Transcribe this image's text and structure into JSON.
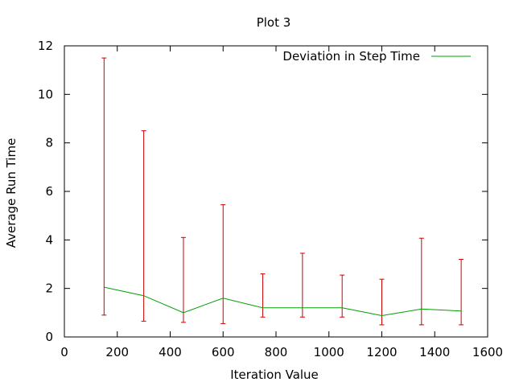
{
  "chart_data": {
    "type": "line",
    "title": "Plot 3",
    "xlabel": "Iteration Value",
    "ylabel": "Average Run Time",
    "xlim": [
      0,
      1600
    ],
    "ylim": [
      0,
      12
    ],
    "xticks": [
      0,
      200,
      400,
      600,
      800,
      1000,
      1200,
      1400,
      1600
    ],
    "yticks": [
      0,
      2,
      4,
      6,
      8,
      10,
      12
    ],
    "grid": false,
    "legend_position": "top-right",
    "series": [
      {
        "name": "Deviation in Step Time",
        "color": "#00a000",
        "x": [
          150,
          300,
          450,
          600,
          750,
          900,
          1050,
          1200,
          1350,
          1500
        ],
        "y": [
          2.05,
          1.7,
          1.0,
          1.6,
          1.2,
          1.2,
          1.2,
          0.88,
          1.15,
          1.07
        ],
        "y_low": [
          0.9,
          0.65,
          0.6,
          0.55,
          0.82,
          0.82,
          0.82,
          0.5,
          0.5,
          0.5
        ],
        "y_high": [
          11.5,
          8.5,
          4.1,
          5.45,
          2.6,
          3.45,
          2.55,
          2.38,
          4.07,
          3.2
        ]
      }
    ],
    "errorbar_color": "#cc0000"
  }
}
